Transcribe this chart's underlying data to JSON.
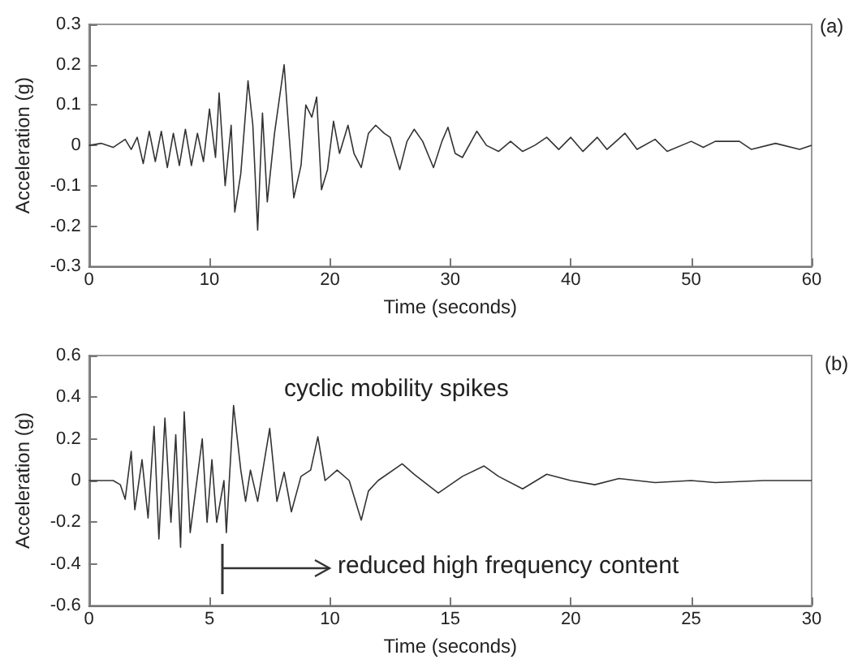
{
  "chart_data": [
    {
      "type": "line",
      "xlabel": "Time (seconds)",
      "ylabel": "Acceleration (g)",
      "xlim": [
        0,
        60
      ],
      "xticks": [
        0,
        10,
        20,
        30,
        40,
        50,
        60
      ],
      "ylim": [
        -0.3,
        0.3
      ],
      "yticks": [
        -0.3,
        -0.2,
        -0.1,
        0,
        0.1,
        0.2,
        0.3
      ],
      "grid": false,
      "marker": "none",
      "line_style": "solid",
      "annotations": [
        "(a)"
      ],
      "series": [
        {
          "color": "#333333",
          "x": [
            0,
            1,
            2,
            3,
            3.5,
            4,
            4.5,
            5,
            5.5,
            6,
            6.5,
            7,
            7.5,
            8,
            8.5,
            9,
            9.5,
            10,
            10.5,
            10.8,
            11.3,
            11.8,
            12.1,
            12.6,
            13.2,
            13.6,
            14,
            14.4,
            14.8,
            15.4,
            16.2,
            16.6,
            17,
            17.6,
            18,
            18.5,
            18.9,
            19.3,
            19.8,
            20.3,
            20.8,
            21.5,
            22,
            22.6,
            23.2,
            23.8,
            24.5,
            25,
            25.8,
            26.4,
            27,
            27.7,
            28.6,
            29.3,
            29.8,
            30.4,
            31,
            32.2,
            33,
            34,
            35,
            36,
            37,
            38,
            39,
            40,
            41,
            42.2,
            43,
            44.5,
            45.5,
            47,
            48,
            50,
            51,
            52,
            54,
            55,
            57,
            59,
            60
          ],
          "values": [
            0,
            0.005,
            -0.005,
            0.015,
            -0.01,
            0.02,
            -0.045,
            0.035,
            -0.04,
            0.035,
            -0.055,
            0.03,
            -0.05,
            0.04,
            -0.05,
            0.03,
            -0.04,
            0.09,
            -0.03,
            0.13,
            -0.1,
            0.05,
            -0.165,
            -0.07,
            0.16,
            0.05,
            -0.21,
            0.08,
            -0.14,
            0.03,
            0.2,
            0.03,
            -0.13,
            -0.05,
            0.1,
            0.07,
            0.12,
            -0.11,
            -0.06,
            0.06,
            -0.02,
            0.05,
            -0.02,
            -0.055,
            0.03,
            0.05,
            0.03,
            0.02,
            -0.06,
            0.01,
            0.04,
            0.01,
            -0.055,
            0.01,
            0.045,
            -0.02,
            -0.03,
            0.035,
            0,
            -0.015,
            0.01,
            -0.015,
            0,
            0.02,
            -0.01,
            0.02,
            -0.015,
            0.02,
            -0.01,
            0.03,
            -0.01,
            0.015,
            -0.015,
            0.01,
            -0.005,
            0.01,
            0.01,
            -0.01,
            0.005,
            -0.01,
            0
          ]
        }
      ]
    },
    {
      "type": "line",
      "xlabel": "Time (seconds)",
      "ylabel": "Acceleration (g)",
      "xlim": [
        0,
        30
      ],
      "xticks": [
        0,
        5,
        10,
        15,
        20,
        25,
        30
      ],
      "ylim": [
        -0.6,
        0.6
      ],
      "yticks": [
        -0.6,
        -0.4,
        -0.2,
        0,
        0.2,
        0.4,
        0.6
      ],
      "grid": false,
      "marker": "none",
      "line_style": "solid",
      "annotations": [
        "(b)",
        "cyclic mobility spikes",
        "reduced high frequency content"
      ],
      "series": [
        {
          "color": "#333333",
          "x": [
            0,
            1,
            1.3,
            1.5,
            1.75,
            1.9,
            2.2,
            2.45,
            2.7,
            2.9,
            3.15,
            3.4,
            3.6,
            3.8,
            3.95,
            4.2,
            4.5,
            4.7,
            4.9,
            5.1,
            5.3,
            5.6,
            5.7,
            6,
            6.3,
            6.5,
            6.7,
            7,
            7.5,
            7.8,
            8.1,
            8.4,
            8.8,
            9.2,
            9.5,
            9.8,
            10.3,
            10.8,
            11.3,
            11.6,
            12,
            13,
            13.5,
            14.5,
            15.5,
            16.4,
            17,
            18,
            19,
            20,
            21,
            22,
            23.5,
            25,
            26,
            28,
            30
          ],
          "values": [
            0,
            0,
            -0.02,
            -0.09,
            0.14,
            -0.14,
            0.1,
            -0.18,
            0.26,
            -0.28,
            0.3,
            -0.2,
            0.22,
            -0.32,
            0.33,
            -0.25,
            0.02,
            0.2,
            -0.2,
            0.1,
            -0.2,
            0,
            -0.25,
            0.36,
            0.05,
            -0.1,
            0.05,
            -0.1,
            0.25,
            -0.1,
            0.04,
            -0.15,
            0.02,
            0.05,
            0.21,
            0,
            0.05,
            0,
            -0.19,
            -0.05,
            0,
            0.08,
            0.03,
            -0.06,
            0.02,
            0.07,
            0.02,
            -0.04,
            0.03,
            0,
            -0.02,
            0.01,
            -0.01,
            0,
            -0.01,
            0,
            0
          ]
        }
      ]
    }
  ]
}
